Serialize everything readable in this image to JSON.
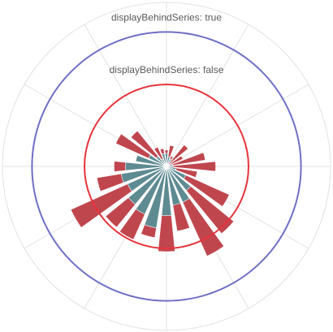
{
  "chart_data": {
    "type": "polar-bar",
    "angles_deg": [
      0,
      15,
      30,
      45,
      60,
      75,
      90,
      105,
      120,
      135,
      150,
      165,
      180,
      195,
      210,
      225,
      240,
      255,
      270,
      285,
      300,
      315,
      330,
      345
    ],
    "radial_range": [
      0,
      100
    ],
    "angle_gridlines_every_deg": 30,
    "radial_gridlines": [
      50,
      100
    ],
    "series": [
      {
        "color": "#c0464e",
        "values": [
          10,
          13,
          7,
          17,
          11,
          24,
          30,
          19,
          42,
          53,
          60,
          40,
          52,
          44,
          49,
          48,
          64,
          43,
          32,
          17,
          34,
          28,
          13,
          11
        ]
      },
      {
        "color": "#5e8b92",
        "values": [
          8,
          6,
          5,
          2,
          2,
          4,
          4,
          6,
          13,
          19,
          24,
          24,
          30,
          38,
          32,
          30,
          26,
          28,
          25,
          19,
          12,
          8,
          5,
          8
        ]
      }
    ],
    "plot_bands": [
      {
        "value": 50,
        "color": "#e8333c",
        "label": "displayBehindSeries: false"
      },
      {
        "value": 82,
        "color": "#6f6fc5",
        "label": "displayBehindSeries: true"
      }
    ]
  }
}
